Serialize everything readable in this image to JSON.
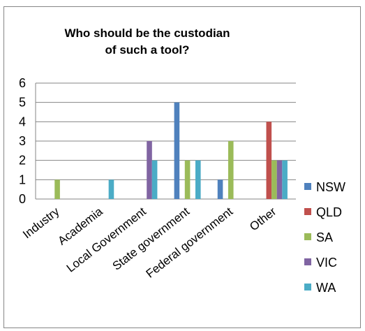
{
  "chart_data": {
    "type": "bar",
    "title": [
      "Who should be the custodian",
      "of such a tool?"
    ],
    "categories": [
      "Industry",
      "Academia",
      "Local Government",
      "State government",
      "Federal government",
      "Other"
    ],
    "series": [
      {
        "name": "NSW",
        "color": "#4F81BD",
        "values": [
          0,
          0,
          0,
          5,
          1,
          0
        ]
      },
      {
        "name": "QLD",
        "color": "#C0504D",
        "values": [
          0,
          0,
          0,
          0,
          0,
          4
        ]
      },
      {
        "name": "SA",
        "color": "#9BBB59",
        "values": [
          1,
          0,
          0,
          2,
          3,
          2
        ]
      },
      {
        "name": "VIC",
        "color": "#8064A2",
        "values": [
          0,
          0,
          3,
          0,
          0,
          2
        ]
      },
      {
        "name": "WA",
        "color": "#4BACC6",
        "values": [
          0,
          1,
          2,
          2,
          0,
          2
        ]
      }
    ],
    "yticks": [
      "0",
      "1",
      "2",
      "3",
      "4",
      "5",
      "6"
    ],
    "ylim": [
      0,
      6
    ],
    "grid": true,
    "legend_position": "right"
  }
}
